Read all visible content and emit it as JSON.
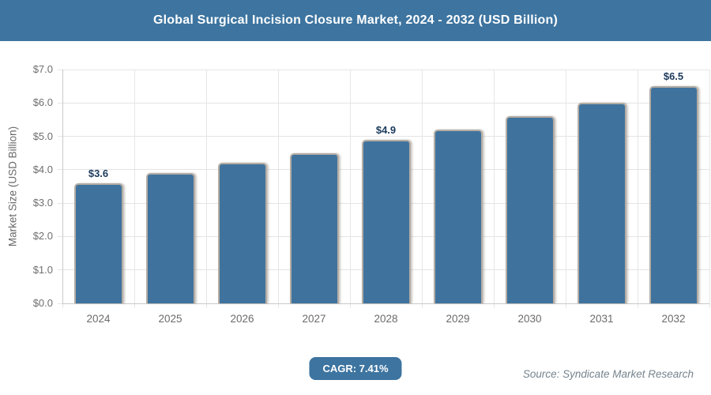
{
  "header": {
    "title": "Global Surgical Incision Closure Market, 2024 - 2032 (USD Billion)"
  },
  "chart_data": {
    "type": "bar",
    "title": "Global Surgical Incision Closure Market, 2024 - 2032 (USD Billion)",
    "categories": [
      "2024",
      "2025",
      "2026",
      "2027",
      "2028",
      "2029",
      "2030",
      "2031",
      "2032"
    ],
    "values": [
      3.6,
      3.9,
      4.2,
      4.5,
      4.9,
      5.2,
      5.6,
      6.0,
      6.5
    ],
    "bar_labels": [
      "$3.6",
      "",
      "",
      "",
      "$4.9",
      "",
      "",
      "",
      "$6.5"
    ],
    "xlabel": "",
    "ylabel": "Market Size (USD Billion)",
    "ylim": [
      0,
      7
    ],
    "ytick_labels": [
      "$0.0",
      "$1.0",
      "$2.0",
      "$3.0",
      "$4.0",
      "$5.0",
      "$6.0",
      "$7.0"
    ],
    "grid": true,
    "legend": false,
    "bar_color": "#3f739e",
    "bar_border_color": "#b5ada4",
    "bar_label_color": "#1c3a5c"
  },
  "footer": {
    "cagr_label": "CAGR: 7.41%",
    "source": "Source: Syndicate Market Research"
  },
  "colors": {
    "header_bg": "#3d74a0",
    "header_text": "#ffffff",
    "badge_bg": "#3d74a0",
    "gridline": "#e4e4e4",
    "tick_text": "#6f6f6f",
    "source_text": "#75838d"
  }
}
